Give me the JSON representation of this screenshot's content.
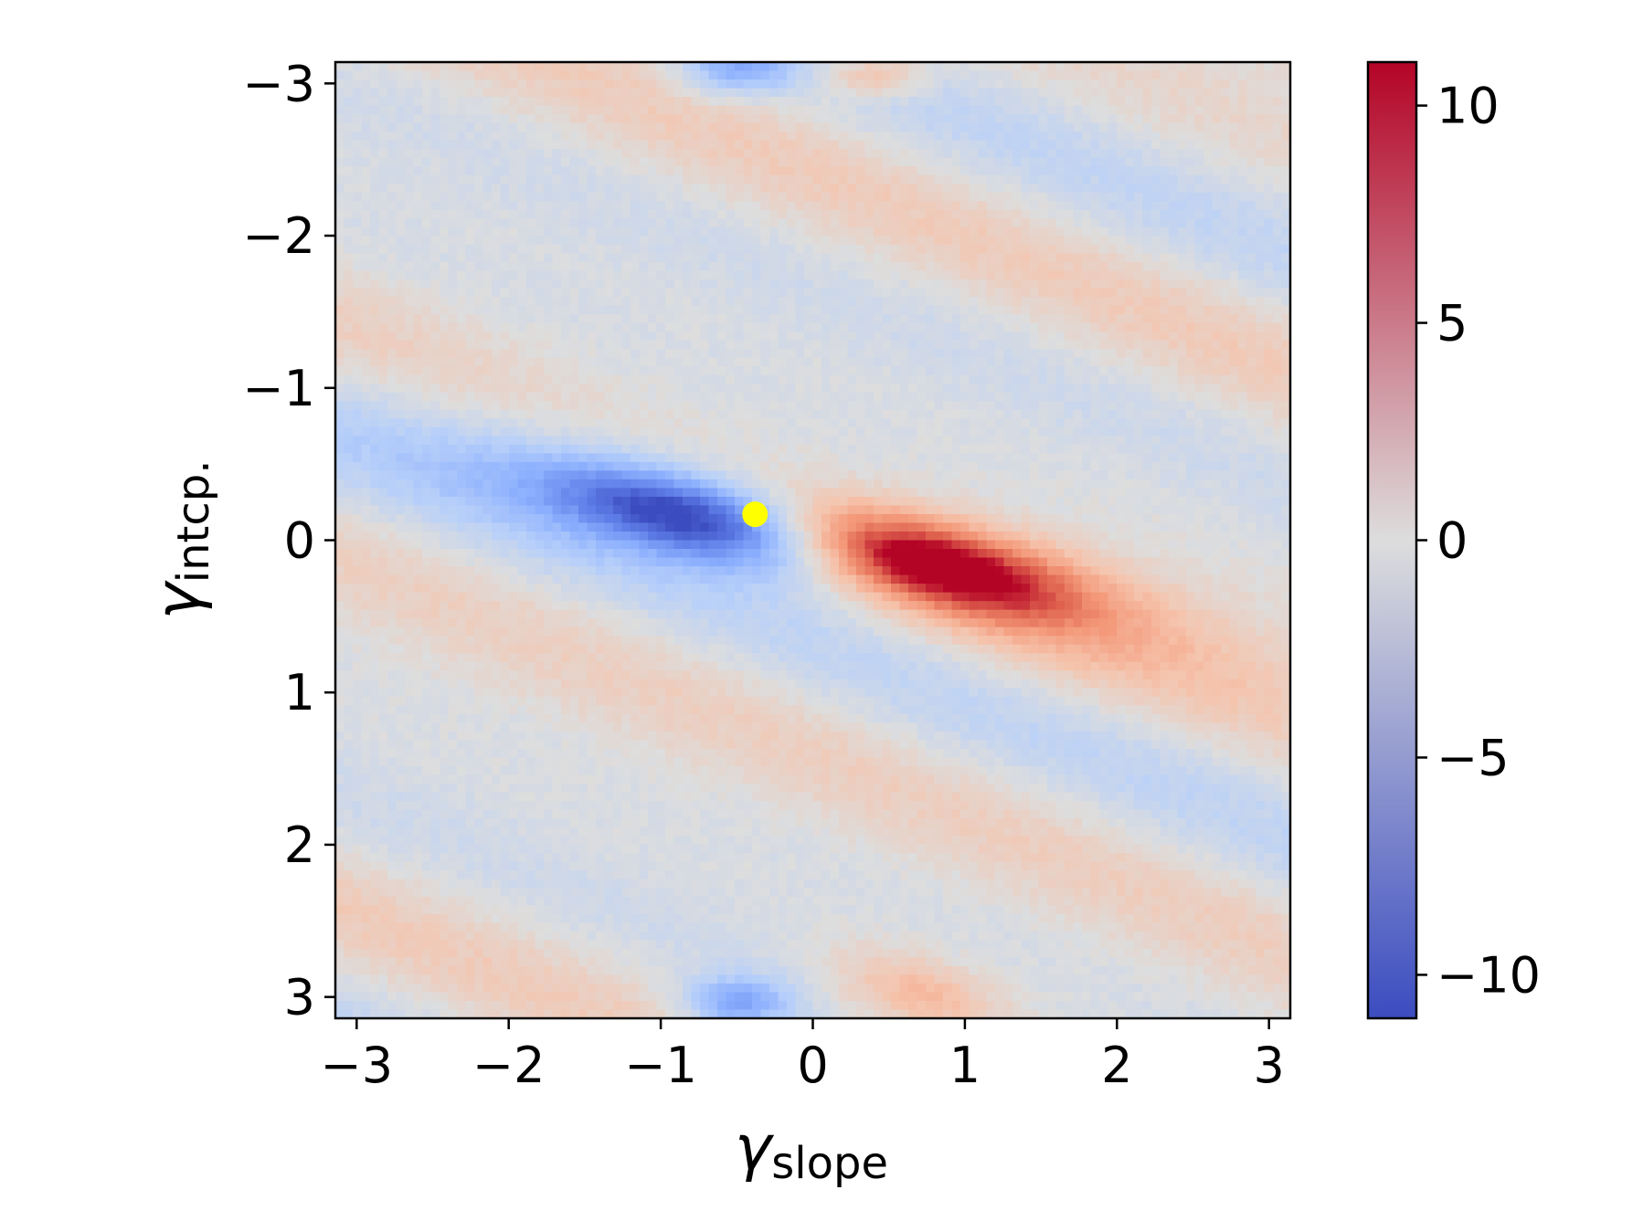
{
  "chart_data": {
    "type": "heatmap",
    "title": "",
    "x_axis": {
      "symbol": "γ",
      "subscript": "slope",
      "range": [
        -3.14,
        3.14
      ],
      "ticks": [
        -3,
        -2,
        -1,
        0,
        1,
        2,
        3
      ],
      "tick_labels": [
        "−3",
        "−2",
        "−1",
        "0",
        "1",
        "2",
        "3"
      ]
    },
    "y_axis": {
      "symbol": "γ",
      "subscript": "intcp.",
      "range": [
        -3.14,
        3.14
      ],
      "inverted": true,
      "ticks": [
        -3,
        -2,
        -1,
        0,
        1,
        2,
        3
      ],
      "tick_labels": [
        "−3",
        "−2",
        "−1",
        "0",
        "1",
        "2",
        "3"
      ]
    },
    "colorbar": {
      "colormap": "coolwarm",
      "range": [
        -11,
        11
      ],
      "ticks": [
        10,
        5,
        0,
        -5,
        -10
      ],
      "tick_labels": [
        "10",
        "5",
        "0",
        "−5",
        "−10"
      ],
      "colors": {
        "low": "#3b4cc0",
        "mid": "#dddddd",
        "high": "#b40426"
      }
    },
    "grid_resolution": 110,
    "features": [
      {
        "kind": "negative-lobe",
        "center": [
          -0.75,
          -0.15
        ],
        "peak_value": -10.5
      },
      {
        "kind": "positive-lobe",
        "center": [
          0.75,
          0.15
        ],
        "peak_value": 10.8
      },
      {
        "kind": "negative-edge-patch",
        "center": [
          -0.5,
          -3.0
        ],
        "peak_value": -5
      },
      {
        "kind": "positive-edge-patch",
        "center": [
          0.4,
          -3.0
        ],
        "peak_value": 4
      },
      {
        "kind": "negative-edge-patch",
        "center": [
          -0.5,
          3.0
        ],
        "peak_value": -6
      },
      {
        "kind": "positive-edge-patch",
        "center": [
          0.7,
          3.0
        ],
        "peak_value": 4
      }
    ],
    "marker": {
      "x": -0.38,
      "y": -0.17,
      "color": "#ffff00"
    },
    "grid": false,
    "legend": "none"
  }
}
